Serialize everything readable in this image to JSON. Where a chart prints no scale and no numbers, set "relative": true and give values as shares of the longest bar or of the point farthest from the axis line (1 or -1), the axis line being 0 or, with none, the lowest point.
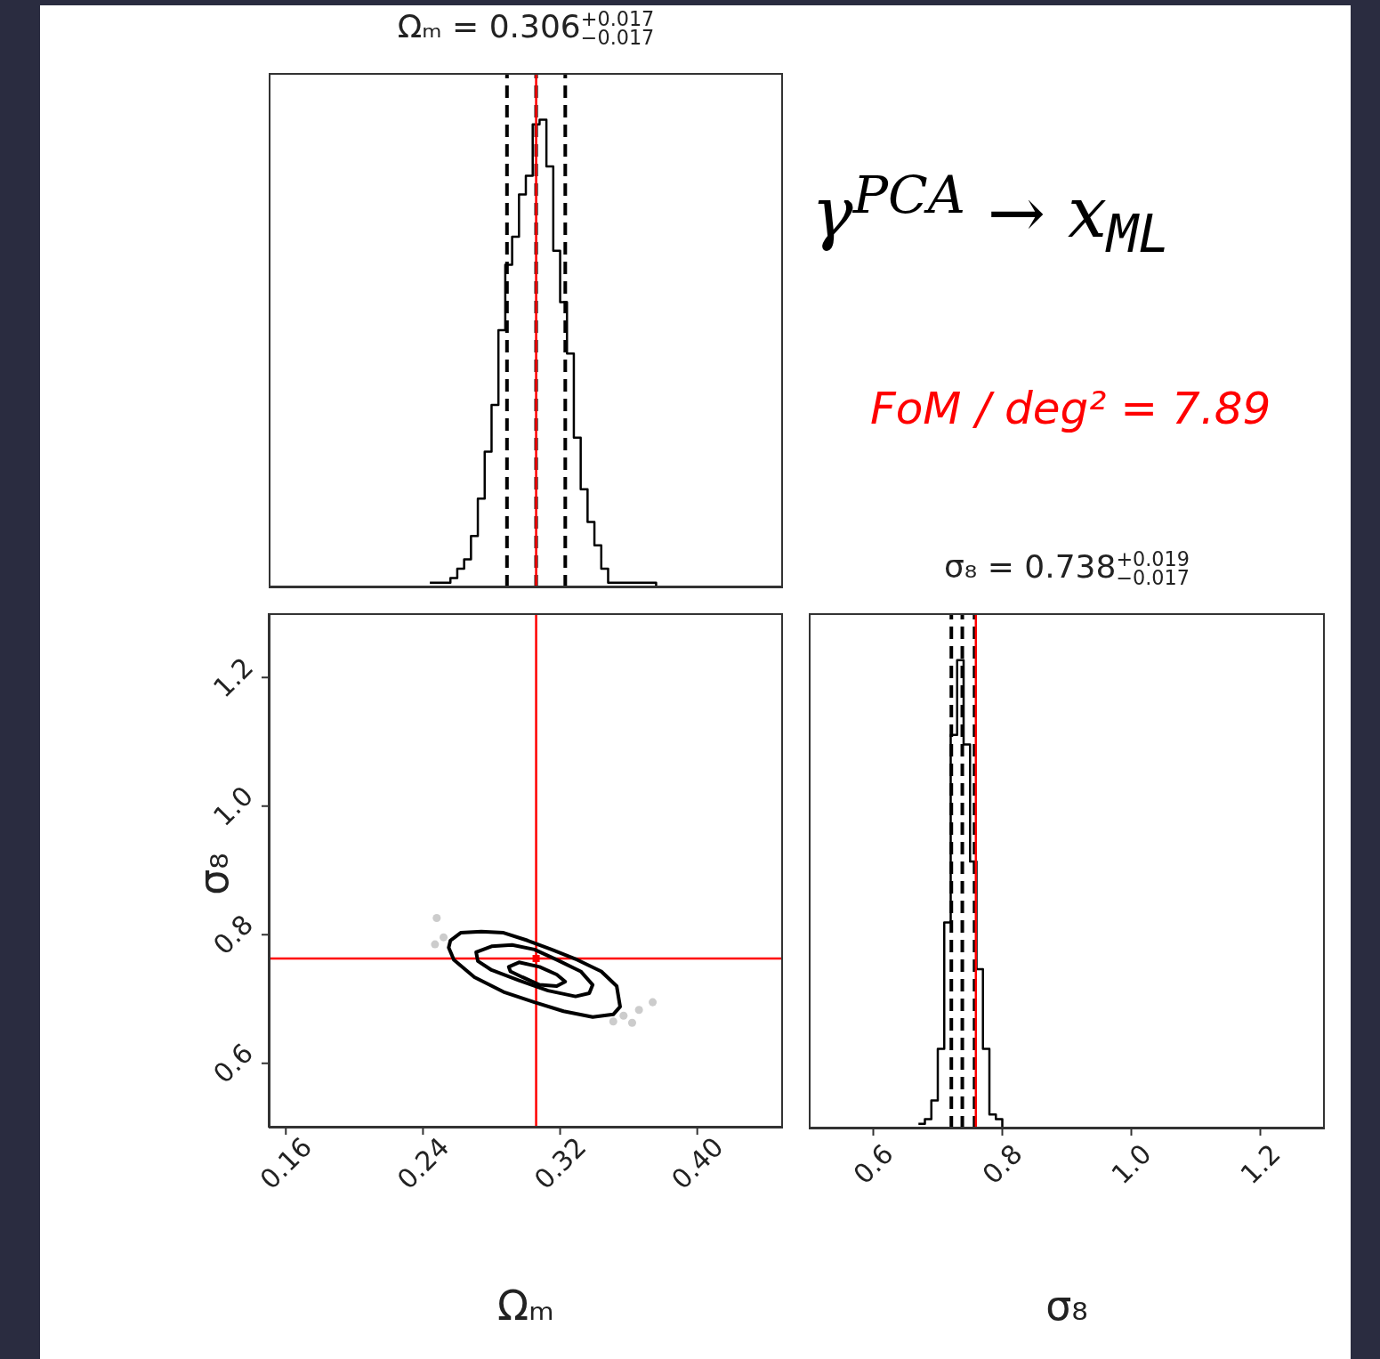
{
  "chart_data": [
    {
      "type": "step",
      "title": "Ωₘ = 0.306$^{+0.017}$$_{−0.017}$",
      "color": "#000000",
      "relative": true,
      "xlim": [
        0.15,
        0.45
      ],
      "xticks": [
        0.16,
        0.24,
        0.32,
        0.4
      ],
      "tick_labels": false,
      "x": [
        0.244,
        0.248,
        0.252,
        0.256,
        0.26,
        0.264,
        0.268,
        0.272,
        0.276,
        0.28,
        0.284,
        0.288,
        0.292,
        0.296,
        0.3,
        0.304,
        0.308,
        0.312,
        0.316,
        0.32,
        0.324,
        0.328,
        0.332,
        0.336,
        0.34,
        0.344,
        0.348,
        0.352,
        0.356,
        0.36,
        0.364,
        0.368,
        0.372,
        0.376
      ],
      "values": [
        0.01,
        0.01,
        0.01,
        0.02,
        0.04,
        0.06,
        0.11,
        0.19,
        0.29,
        0.39,
        0.55,
        0.69,
        0.75,
        0.84,
        0.88,
        0.99,
        1,
        0.9,
        0.72,
        0.61,
        0.5,
        0.32,
        0.21,
        0.14,
        0.09,
        0.04,
        0.01,
        0.01,
        0.01,
        0.01,
        0.01,
        0.01,
        0.01,
        0
      ],
      "ref_lines": [
        {
          "axis": "x",
          "value": 0.289,
          "color": "#000000",
          "line_style": "dashed"
        },
        {
          "axis": "x",
          "value": 0.306,
          "color": "#000000",
          "line_style": "dashed"
        },
        {
          "axis": "x",
          "value": 0.323,
          "color": "#000000",
          "line_style": "dashed"
        },
        {
          "axis": "x",
          "value": 0.306,
          "color": "#ff0000",
          "line_style": "solid"
        }
      ]
    },
    {
      "type": "scatter",
      "xlabel": "Ωₘ",
      "ylabel": "σ₈",
      "xlim": [
        0.15,
        0.45
      ],
      "xticks": [
        0.16,
        0.24,
        0.32,
        {
          "value": 0.4,
          "label": "0.40"
        }
      ],
      "ylim": [
        0.5,
        1.3
      ],
      "yticks": [
        0.6,
        0.8,
        {
          "value": 1,
          "label": "1.0"
        },
        1.2
      ],
      "ref_lines": [
        {
          "axis": "x",
          "value": 0.306,
          "color": "#ff0000",
          "line_style": "solid"
        },
        {
          "axis": "y",
          "value": 0.763,
          "color": "#ff0000",
          "line_style": "solid"
        }
      ],
      "series": [
        {
          "type": "scatter",
          "marker": "circle",
          "color": "#cccccc",
          "x": [
            0.248,
            0.252,
            0.247,
            0.374,
            0.366,
            0.362,
            0.351,
            0.357
          ],
          "values": [
            0.826,
            0.796,
            0.785,
            0.695,
            0.683,
            0.663,
            0.665,
            0.674
          ]
        },
        {
          "type": "scatter",
          "marker": "square",
          "color": "#ff0000",
          "x": [
            0.306
          ],
          "values": [
            0.763
          ]
        }
      ]
    },
    {
      "type": "step",
      "title": "σ₈ = 0.738$^{+0.019}$$_{−0.017}$",
      "xlabel": "σ₈",
      "color": "#000000",
      "relative": true,
      "xlim": [
        0.5,
        1.3
      ],
      "xticks": [
        0.6,
        0.8,
        {
          "value": 1,
          "label": "1.0"
        },
        1.2
      ],
      "tick_labels": "x",
      "x": [
        0.67,
        0.68,
        0.69,
        0.7,
        0.71,
        0.72,
        0.73,
        0.74,
        0.75,
        0.76,
        0.77,
        0.78,
        0.79,
        0.8
      ],
      "values": [
        0.01,
        0.02,
        0.06,
        0.17,
        0.44,
        0.84,
        1,
        0.82,
        0.57,
        0.34,
        0.17,
        0.03,
        0.02,
        0
      ],
      "ref_lines": [
        {
          "axis": "x",
          "value": 0.721,
          "color": "#000000",
          "line_style": "dashed"
        },
        {
          "axis": "x",
          "value": 0.738,
          "color": "#000000",
          "line_style": "dashed"
        },
        {
          "axis": "x",
          "value": 0.757,
          "color": "#000000",
          "line_style": "dashed"
        },
        {
          "axis": "x",
          "value": 0.759,
          "color": "#ff0000",
          "line_style": "solid"
        }
      ]
    },
    {
      "type": "other",
      "annotations": [
        "γ$^{PCA}$ → x$_{ML}$",
        "FoM / deg² = 7.89"
      ]
    }
  ]
}
